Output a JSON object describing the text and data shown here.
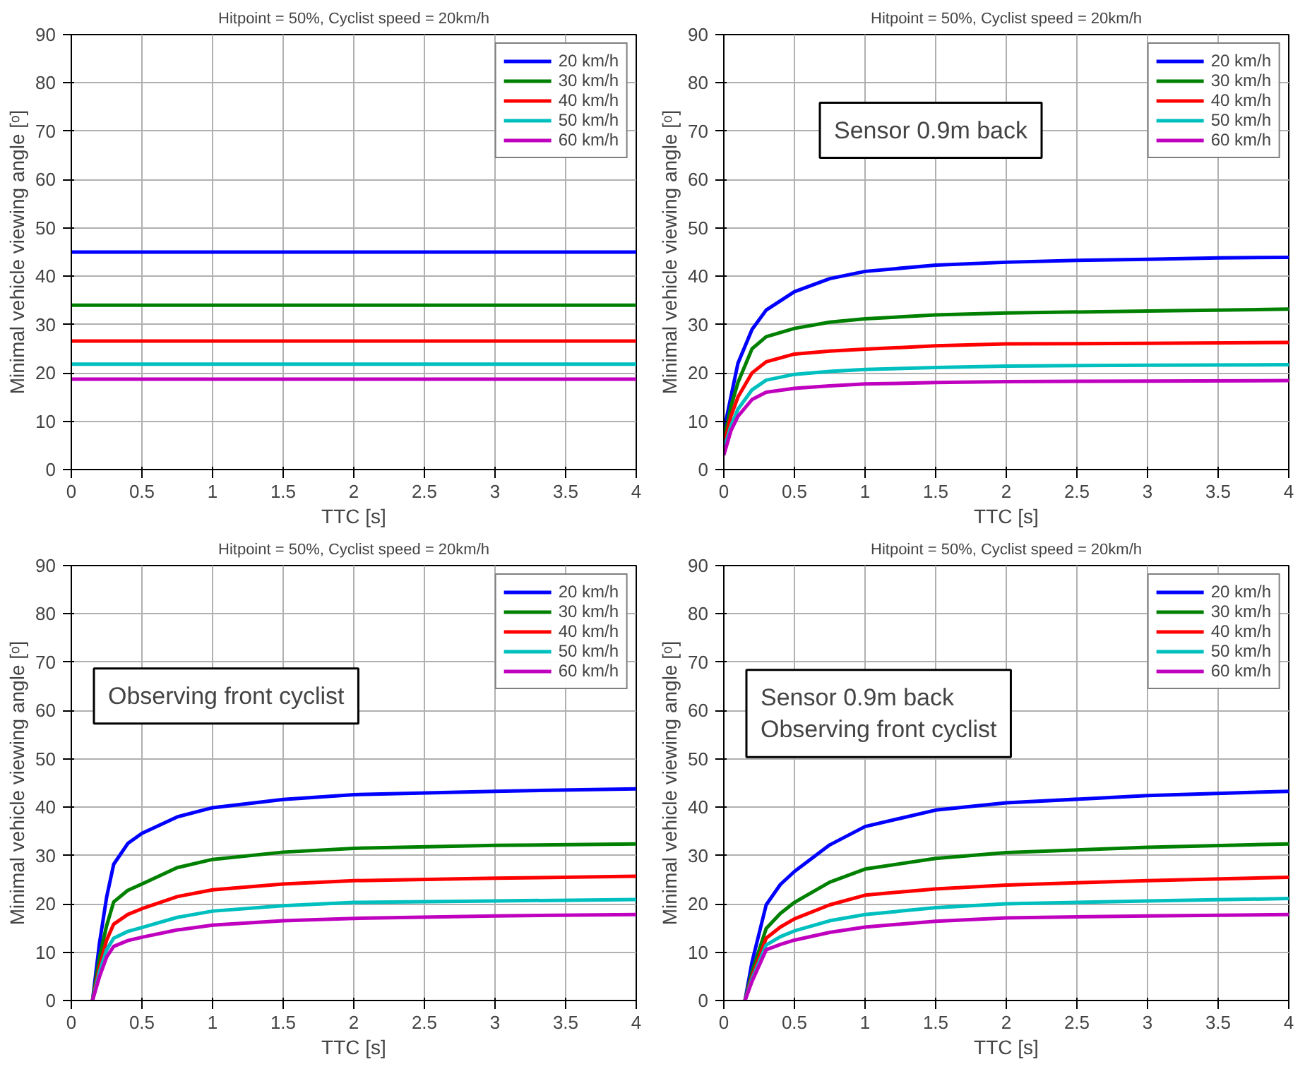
{
  "chart_data": [
    {
      "type": "line",
      "title": "Hitpoint = 50%, Cyclist speed = 20km/h",
      "xlabel": "TTC [s]",
      "ylabel": "Minimal vehicle viewing angle [ᵒ]",
      "xlim": [
        0,
        4
      ],
      "ylim": [
        0,
        90
      ],
      "xticks": [
        0,
        0.5,
        1,
        1.5,
        2,
        2.5,
        3,
        3.5,
        4
      ],
      "yticks": [
        0,
        10,
        20,
        30,
        40,
        50,
        60,
        70,
        80,
        90
      ],
      "grid": true,
      "legend": "top right",
      "line_style": "solid",
      "series": [
        {
          "name": "20 km/h",
          "color": "#0000ff",
          "x": [
            0,
            4
          ],
          "values": [
            45,
            45
          ]
        },
        {
          "name": "30 km/h",
          "color": "#008000",
          "x": [
            0,
            4
          ],
          "values": [
            34,
            34
          ]
        },
        {
          "name": "40 km/h",
          "color": "#ff0000",
          "x": [
            0,
            4
          ],
          "values": [
            26.6,
            26.6
          ]
        },
        {
          "name": "50 km/h",
          "color": "#00bfbf",
          "x": [
            0,
            4
          ],
          "values": [
            21.8,
            21.8
          ]
        },
        {
          "name": "60 km/h",
          "color": "#bf00bf",
          "x": [
            0,
            4
          ],
          "values": [
            18.7,
            18.7
          ]
        }
      ]
    },
    {
      "type": "line",
      "title": "Hitpoint = 50%, Cyclist speed = 20km/h",
      "xlabel": "TTC [s]",
      "ylabel": "Minimal vehicle viewing angle [ᵒ]",
      "xlim": [
        0,
        4
      ],
      "ylim": [
        0,
        90
      ],
      "xticks": [
        0,
        0.5,
        1,
        1.5,
        2,
        2.5,
        3,
        3.5,
        4
      ],
      "yticks": [
        0,
        10,
        20,
        30,
        40,
        50,
        60,
        70,
        80,
        90
      ],
      "grid": true,
      "legend": "top right",
      "line_style": "solid",
      "annotations": [
        "Sensor 0.9m back"
      ],
      "series": [
        {
          "name": "20 km/h",
          "color": "#0000ff",
          "x": [
            0,
            0.05,
            0.1,
            0.2,
            0.3,
            0.5,
            0.75,
            1,
            1.5,
            2,
            2.5,
            3,
            3.5,
            4
          ],
          "values": [
            8,
            15,
            22,
            29,
            33,
            36.8,
            39.5,
            41,
            42.3,
            42.9,
            43.3,
            43.5,
            43.8,
            43.9
          ]
        },
        {
          "name": "30 km/h",
          "color": "#008000",
          "x": [
            0,
            0.05,
            0.1,
            0.2,
            0.3,
            0.5,
            0.75,
            1,
            1.5,
            2,
            3,
            4
          ],
          "values": [
            6,
            13,
            18,
            25,
            27.5,
            29.2,
            30.5,
            31.2,
            32,
            32.4,
            32.8,
            33.2
          ]
        },
        {
          "name": "40 km/h",
          "color": "#ff0000",
          "x": [
            0,
            0.05,
            0.1,
            0.2,
            0.3,
            0.5,
            0.75,
            1,
            1.5,
            2,
            3,
            4
          ],
          "values": [
            5,
            11,
            15,
            20,
            22.3,
            23.9,
            24.5,
            24.9,
            25.6,
            26,
            26.1,
            26.3
          ]
        },
        {
          "name": "50 km/h",
          "color": "#00bfbf",
          "x": [
            0,
            0.05,
            0.1,
            0.2,
            0.3,
            0.5,
            0.75,
            1,
            1.5,
            2,
            3,
            4
          ],
          "values": [
            4,
            9,
            12.5,
            16.5,
            18.5,
            19.7,
            20.3,
            20.7,
            21.1,
            21.4,
            21.6,
            21.7
          ]
        },
        {
          "name": "60 km/h",
          "color": "#bf00bf",
          "x": [
            0,
            0.05,
            0.1,
            0.2,
            0.3,
            0.5,
            0.75,
            1,
            1.5,
            2,
            3,
            4
          ],
          "values": [
            3,
            8,
            11,
            14.5,
            16,
            16.8,
            17.3,
            17.7,
            18,
            18.2,
            18.3,
            18.4
          ]
        }
      ]
    },
    {
      "type": "line",
      "title": "Hitpoint = 50%, Cyclist speed = 20km/h",
      "xlabel": "TTC [s]",
      "ylabel": "Minimal vehicle viewing angle [ᵒ]",
      "xlim": [
        0,
        4
      ],
      "ylim": [
        0,
        90
      ],
      "xticks": [
        0,
        0.5,
        1,
        1.5,
        2,
        2.5,
        3,
        3.5,
        4
      ],
      "yticks": [
        0,
        10,
        20,
        30,
        40,
        50,
        60,
        70,
        80,
        90
      ],
      "grid": true,
      "legend": "top right",
      "line_style": "solid",
      "annotations": [
        "Observing front cyclist"
      ],
      "series": [
        {
          "name": "20 km/h",
          "color": "#0000ff",
          "x": [
            0.15,
            0.2,
            0.25,
            0.3,
            0.4,
            0.5,
            0.75,
            1,
            1.5,
            2,
            3,
            4
          ],
          "values": [
            0,
            12,
            21.4,
            28.2,
            32.5,
            34.6,
            38,
            39.9,
            41.6,
            42.6,
            43.3,
            43.8
          ]
        },
        {
          "name": "30 km/h",
          "color": "#008000",
          "x": [
            0.15,
            0.2,
            0.25,
            0.3,
            0.4,
            0.5,
            0.75,
            1,
            1.5,
            2,
            3,
            4
          ],
          "values": [
            0,
            9,
            15.5,
            20.4,
            22.8,
            24.1,
            27.5,
            29.2,
            30.7,
            31.5,
            32.1,
            32.4
          ]
        },
        {
          "name": "40 km/h",
          "color": "#ff0000",
          "x": [
            0.15,
            0.2,
            0.25,
            0.3,
            0.4,
            0.5,
            0.75,
            1,
            1.5,
            2,
            3,
            4
          ],
          "values": [
            0,
            7,
            12.5,
            15.8,
            17.8,
            19,
            21.5,
            22.9,
            24.1,
            24.8,
            25.3,
            25.7
          ]
        },
        {
          "name": "50 km/h",
          "color": "#00bfbf",
          "x": [
            0.15,
            0.2,
            0.25,
            0.3,
            0.4,
            0.5,
            0.75,
            1,
            1.5,
            2,
            3,
            4
          ],
          "values": [
            0,
            6,
            10.5,
            12.9,
            14.3,
            15.1,
            17.2,
            18.5,
            19.6,
            20.3,
            20.6,
            20.9
          ]
        },
        {
          "name": "60 km/h",
          "color": "#bf00bf",
          "x": [
            0.15,
            0.2,
            0.25,
            0.3,
            0.4,
            0.5,
            0.75,
            1,
            1.5,
            2,
            3,
            4
          ],
          "values": [
            0,
            5,
            9,
            11.2,
            12.4,
            13.1,
            14.6,
            15.6,
            16.5,
            17,
            17.5,
            17.8
          ]
        }
      ]
    },
    {
      "type": "line",
      "title": "Hitpoint = 50%, Cyclist speed = 20km/h",
      "xlabel": "TTC [s]",
      "ylabel": "Minimal vehicle viewing angle [ᵒ]",
      "xlim": [
        0,
        4
      ],
      "ylim": [
        0,
        90
      ],
      "xticks": [
        0,
        0.5,
        1,
        1.5,
        2,
        2.5,
        3,
        3.5,
        4
      ],
      "yticks": [
        0,
        10,
        20,
        30,
        40,
        50,
        60,
        70,
        80,
        90
      ],
      "grid": true,
      "legend": "top right",
      "line_style": "solid",
      "annotations": [
        "Sensor 0.9m back\nObserving front cyclist"
      ],
      "series": [
        {
          "name": "20 km/h",
          "color": "#0000ff",
          "x": [
            0.15,
            0.2,
            0.3,
            0.4,
            0.5,
            0.75,
            1,
            1.5,
            2,
            3,
            4
          ],
          "values": [
            0,
            8,
            19.8,
            24,
            26.7,
            32.2,
            36,
            39.4,
            40.9,
            42.4,
            43.3
          ]
        },
        {
          "name": "30 km/h",
          "color": "#008000",
          "x": [
            0.15,
            0.2,
            0.3,
            0.4,
            0.5,
            0.75,
            1,
            1.5,
            2,
            3,
            4
          ],
          "values": [
            0,
            6,
            14.9,
            18,
            20.3,
            24.5,
            27.2,
            29.4,
            30.6,
            31.7,
            32.4
          ]
        },
        {
          "name": "40 km/h",
          "color": "#ff0000",
          "x": [
            0.15,
            0.2,
            0.3,
            0.4,
            0.5,
            0.75,
            1,
            1.5,
            2,
            3,
            4
          ],
          "values": [
            0,
            5,
            12.9,
            15.2,
            16.9,
            19.8,
            21.8,
            23.1,
            23.9,
            24.8,
            25.5
          ]
        },
        {
          "name": "50 km/h",
          "color": "#00bfbf",
          "x": [
            0.15,
            0.2,
            0.3,
            0.4,
            0.5,
            0.75,
            1,
            1.5,
            2,
            3,
            4
          ],
          "values": [
            0,
            4.5,
            11.5,
            13.2,
            14.4,
            16.5,
            17.8,
            19.2,
            20,
            20.6,
            21.1
          ]
        },
        {
          "name": "60 km/h",
          "color": "#bf00bf",
          "x": [
            0.15,
            0.2,
            0.3,
            0.4,
            0.5,
            0.75,
            1,
            1.5,
            2,
            3,
            4
          ],
          "values": [
            0,
            4,
            10.5,
            11.6,
            12.5,
            14.1,
            15.2,
            16.4,
            17.1,
            17.5,
            17.8
          ]
        }
      ]
    }
  ]
}
